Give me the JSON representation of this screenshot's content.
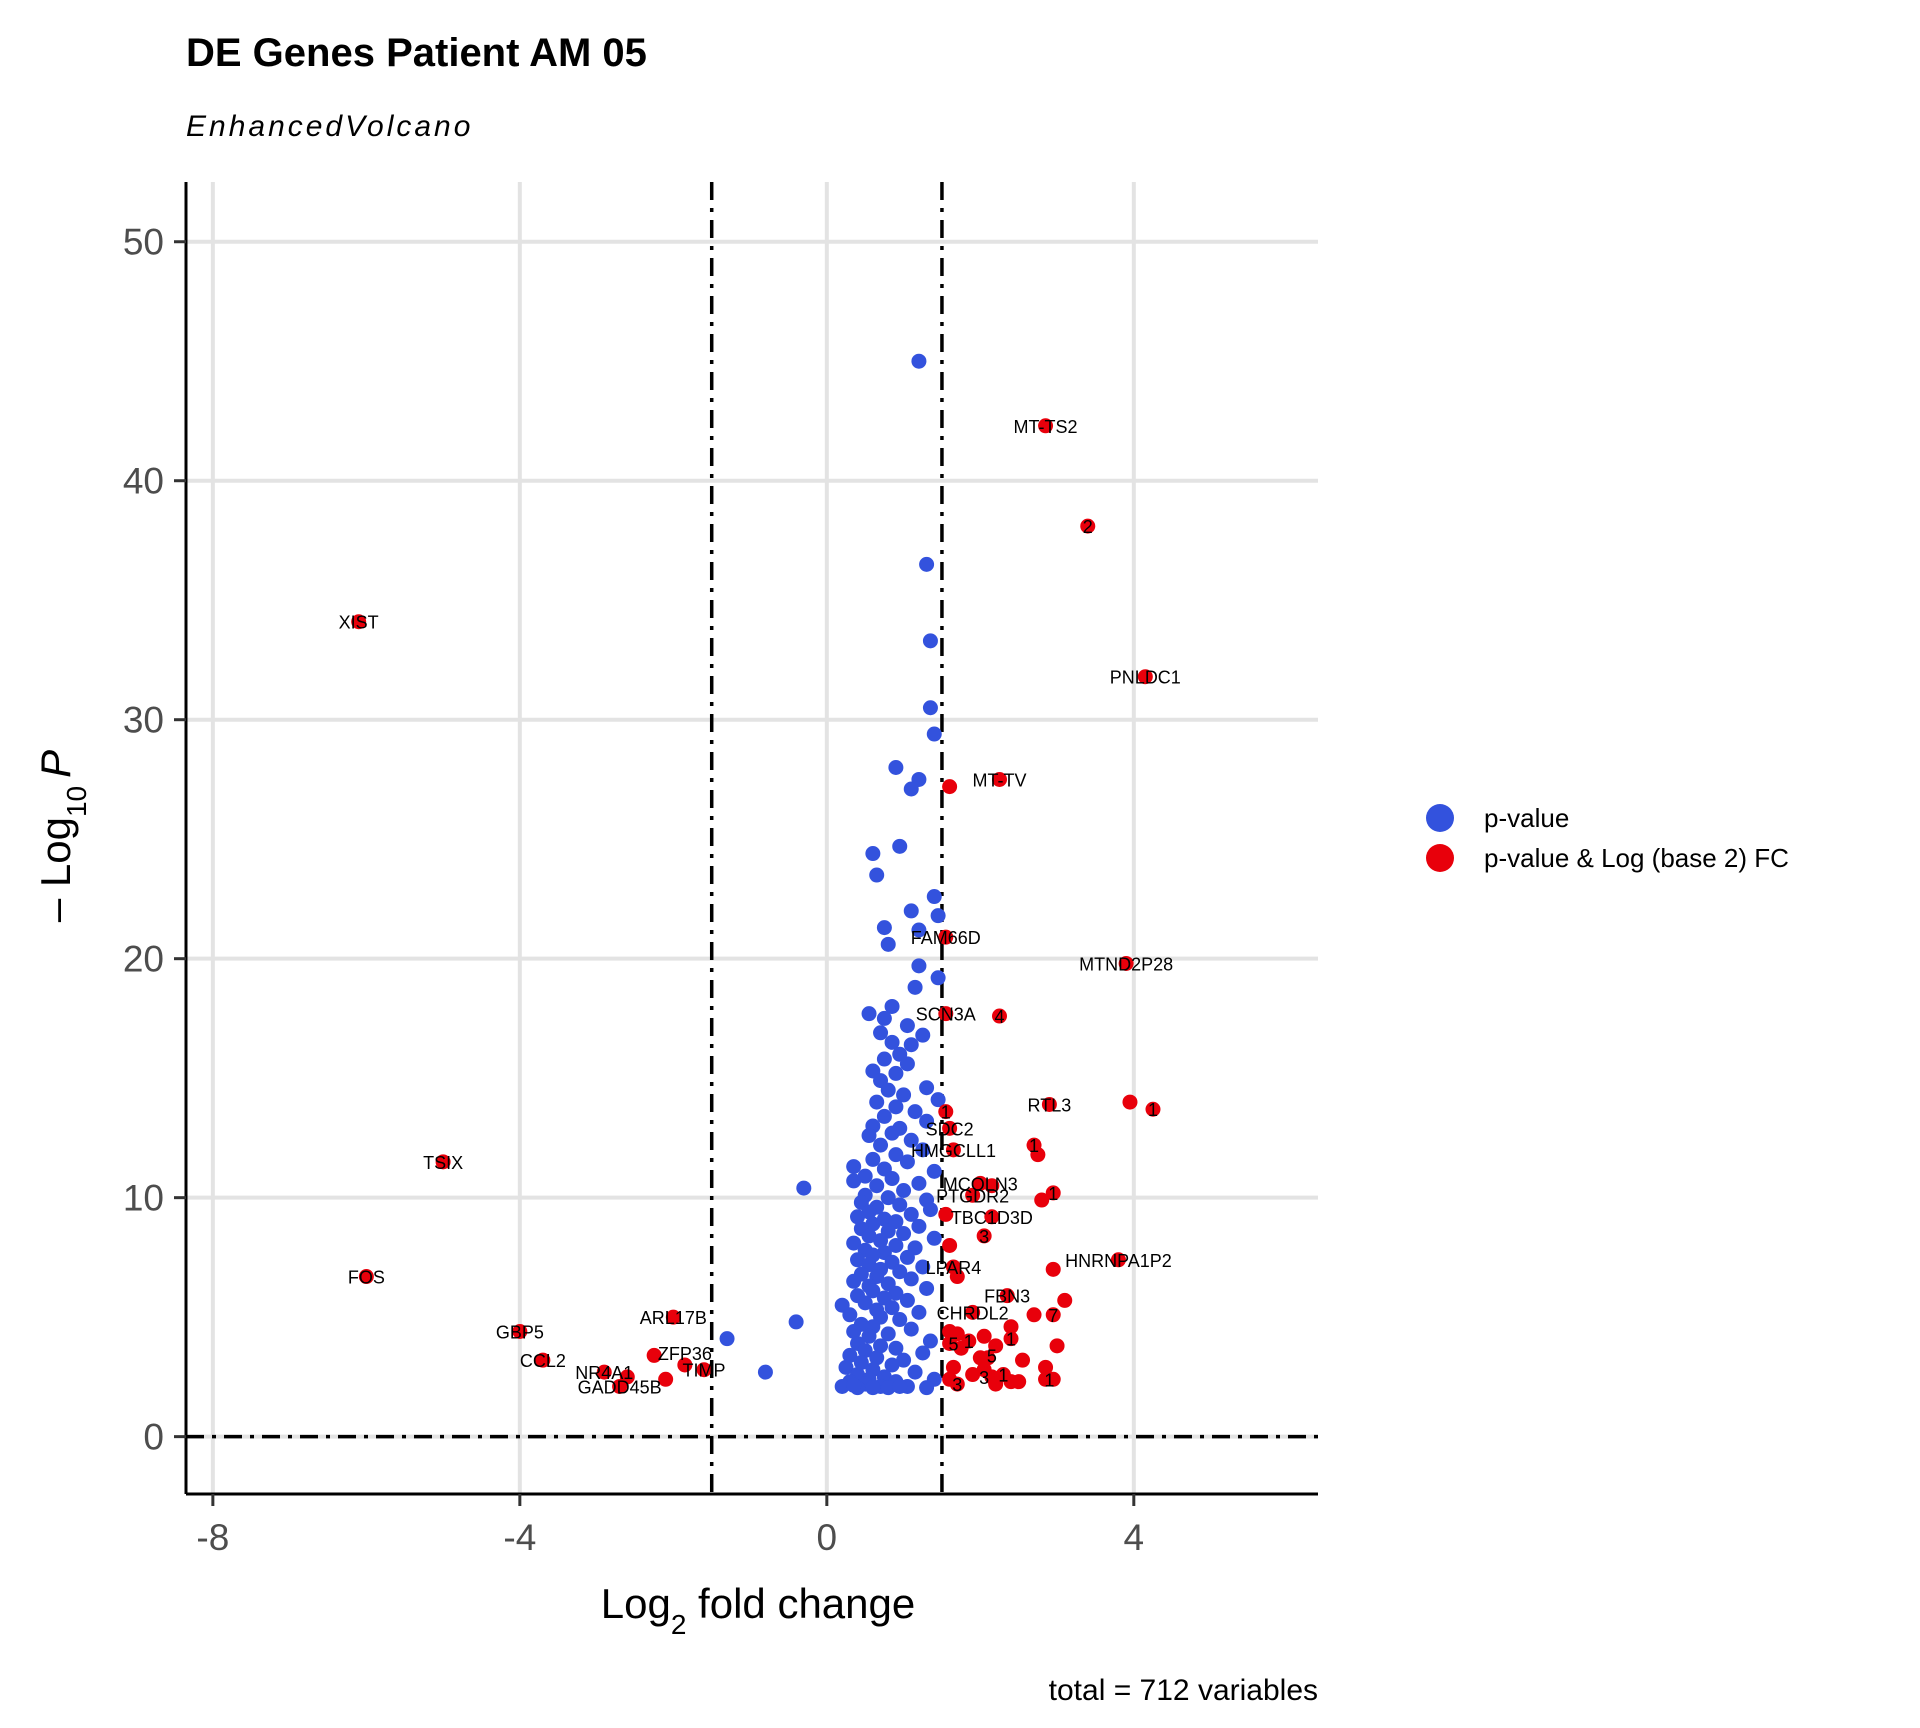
{
  "chart_data": {
    "type": "scatter",
    "title": "DE Genes Patient AM 05",
    "subtitle": "EnhancedVolcano",
    "xlabel_main": "Log",
    "xlabel_sub": "2",
    "xlabel_rest": " fold change",
    "ylabel_pre": "– Log",
    "ylabel_sub": "10",
    "ylabel_italic": "P",
    "caption": "total = 712 variables",
    "xlim": [
      -8.35,
      6.4
    ],
    "ylim": [
      -2.4,
      52.5
    ],
    "xticks": [
      -8,
      -4,
      0,
      4
    ],
    "xtick_labels": [
      "-8",
      "-4",
      "0",
      "4"
    ],
    "yticks": [
      0,
      10,
      20,
      30,
      40,
      50
    ],
    "ytick_labels": [
      "0",
      "10",
      "20",
      "30",
      "40",
      "50"
    ],
    "vlines": [
      -1.5,
      1.5
    ],
    "hline": 0,
    "grid": true,
    "legend_position": "right",
    "legend": [
      {
        "label": "p-value",
        "color": "#3352dd"
      },
      {
        "label": "p-value & Log (base 2) FC",
        "color": "#e8000b"
      }
    ],
    "series_blue": [
      [
        1.2,
        45.0
      ],
      [
        1.3,
        36.5
      ],
      [
        1.35,
        33.3
      ],
      [
        1.35,
        30.5
      ],
      [
        1.4,
        29.4
      ],
      [
        0.9,
        28.0
      ],
      [
        1.2,
        27.5
      ],
      [
        1.1,
        27.1
      ],
      [
        0.6,
        24.4
      ],
      [
        0.95,
        24.7
      ],
      [
        0.65,
        23.5
      ],
      [
        1.4,
        22.6
      ],
      [
        1.1,
        22.0
      ],
      [
        1.45,
        21.8
      ],
      [
        0.75,
        21.3
      ],
      [
        1.2,
        21.2
      ],
      [
        0.8,
        20.6
      ],
      [
        1.2,
        19.7
      ],
      [
        1.45,
        19.2
      ],
      [
        1.15,
        18.8
      ],
      [
        0.85,
        18.0
      ],
      [
        0.55,
        17.7
      ],
      [
        0.75,
        17.5
      ],
      [
        1.05,
        17.2
      ],
      [
        1.25,
        16.8
      ],
      [
        0.7,
        16.9
      ],
      [
        0.85,
        16.5
      ],
      [
        1.1,
        16.4
      ],
      [
        0.95,
        16.0
      ],
      [
        0.75,
        15.8
      ],
      [
        1.05,
        15.6
      ],
      [
        0.6,
        15.3
      ],
      [
        0.9,
        15.2
      ],
      [
        0.7,
        14.9
      ],
      [
        1.3,
        14.6
      ],
      [
        0.8,
        14.5
      ],
      [
        1.0,
        14.3
      ],
      [
        0.65,
        14.0
      ],
      [
        1.45,
        14.1
      ],
      [
        0.9,
        13.8
      ],
      [
        1.15,
        13.6
      ],
      [
        0.75,
        13.4
      ],
      [
        1.3,
        13.2
      ],
      [
        0.6,
        13.0
      ],
      [
        0.95,
        12.9
      ],
      [
        0.85,
        12.7
      ],
      [
        0.55,
        12.6
      ],
      [
        1.1,
        12.4
      ],
      [
        0.7,
        12.2
      ],
      [
        1.25,
        12.0
      ],
      [
        0.9,
        11.8
      ],
      [
        0.6,
        11.6
      ],
      [
        1.05,
        11.5
      ],
      [
        0.35,
        11.3
      ],
      [
        0.75,
        11.2
      ],
      [
        1.4,
        11.1
      ],
      [
        0.5,
        10.9
      ],
      [
        0.85,
        10.8
      ],
      [
        0.35,
        10.7
      ],
      [
        1.2,
        10.6
      ],
      [
        0.65,
        10.5
      ],
      [
        -0.3,
        10.4
      ],
      [
        1.0,
        10.3
      ],
      [
        0.5,
        10.1
      ],
      [
        0.8,
        10.0
      ],
      [
        1.3,
        9.9
      ],
      [
        0.45,
        9.8
      ],
      [
        0.95,
        9.7
      ],
      [
        0.65,
        9.6
      ],
      [
        1.35,
        9.5
      ],
      [
        0.55,
        9.4
      ],
      [
        1.1,
        9.3
      ],
      [
        0.4,
        9.2
      ],
      [
        0.75,
        9.1
      ],
      [
        0.9,
        9.0
      ],
      [
        0.6,
        8.9
      ],
      [
        1.2,
        8.8
      ],
      [
        0.45,
        8.7
      ],
      [
        0.8,
        8.6
      ],
      [
        1.0,
        8.5
      ],
      [
        0.55,
        8.4
      ],
      [
        1.4,
        8.3
      ],
      [
        0.7,
        8.2
      ],
      [
        0.35,
        8.1
      ],
      [
        0.9,
        8.0
      ],
      [
        1.15,
        7.9
      ],
      [
        0.5,
        7.8
      ],
      [
        0.75,
        7.7
      ],
      [
        0.6,
        7.6
      ],
      [
        1.05,
        7.5
      ],
      [
        0.4,
        7.4
      ],
      [
        0.85,
        7.3
      ],
      [
        0.55,
        7.2
      ],
      [
        1.25,
        7.1
      ],
      [
        0.7,
        7.0
      ],
      [
        0.95,
        6.9
      ],
      [
        0.45,
        6.8
      ],
      [
        0.65,
        6.7
      ],
      [
        1.1,
        6.6
      ],
      [
        0.35,
        6.5
      ],
      [
        0.8,
        6.4
      ],
      [
        0.55,
        6.3
      ],
      [
        1.3,
        6.2
      ],
      [
        0.6,
        6.1
      ],
      [
        0.9,
        6.0
      ],
      [
        0.4,
        5.9
      ],
      [
        0.75,
        5.8
      ],
      [
        1.05,
        5.7
      ],
      [
        0.5,
        5.6
      ],
      [
        0.2,
        5.5
      ],
      [
        0.85,
        5.4
      ],
      [
        0.65,
        5.3
      ],
      [
        1.2,
        5.2
      ],
      [
        0.3,
        5.1
      ],
      [
        0.7,
        5.0
      ],
      [
        -0.4,
        4.8
      ],
      [
        0.95,
        4.9
      ],
      [
        0.45,
        4.7
      ],
      [
        0.6,
        4.6
      ],
      [
        1.1,
        4.5
      ],
      [
        0.35,
        4.4
      ],
      [
        0.8,
        4.3
      ],
      [
        0.55,
        4.2
      ],
      [
        -1.3,
        4.1
      ],
      [
        1.35,
        4.0
      ],
      [
        0.4,
        3.9
      ],
      [
        0.7,
        3.8
      ],
      [
        0.9,
        3.7
      ],
      [
        0.5,
        3.6
      ],
      [
        1.25,
        3.5
      ],
      [
        0.3,
        3.4
      ],
      [
        0.65,
        3.3
      ],
      [
        1.0,
        3.2
      ],
      [
        0.45,
        3.1
      ],
      [
        0.85,
        3.0
      ],
      [
        0.25,
        2.9
      ],
      [
        0.6,
        2.8
      ],
      [
        -0.8,
        2.7
      ],
      [
        1.15,
        2.7
      ],
      [
        0.4,
        2.6
      ],
      [
        0.75,
        2.5
      ],
      [
        0.55,
        2.4
      ],
      [
        1.4,
        2.4
      ],
      [
        0.3,
        2.3
      ],
      [
        0.9,
        2.3
      ],
      [
        0.5,
        2.2
      ],
      [
        0.7,
        2.1
      ],
      [
        1.05,
        2.1
      ],
      [
        0.2,
        2.1
      ],
      [
        0.6,
        2.05
      ],
      [
        0.8,
        2.05
      ],
      [
        1.3,
        2.05
      ],
      [
        0.4,
        2.05
      ],
      [
        0.95,
        2.1
      ],
      [
        0.35,
        2.15
      ]
    ],
    "series_red": [
      [
        2.85,
        42.3
      ],
      [
        3.4,
        38.1
      ],
      [
        -6.1,
        34.1
      ],
      [
        4.15,
        31.8
      ],
      [
        2.25,
        27.5
      ],
      [
        1.6,
        27.2
      ],
      [
        1.55,
        20.9
      ],
      [
        3.9,
        19.8
      ],
      [
        1.55,
        17.7
      ],
      [
        2.25,
        17.6
      ],
      [
        3.95,
        14.0
      ],
      [
        2.9,
        13.9
      ],
      [
        4.25,
        13.7
      ],
      [
        1.55,
        13.6
      ],
      [
        1.6,
        12.9
      ],
      [
        2.7,
        12.2
      ],
      [
        1.65,
        12.0
      ],
      [
        2.75,
        11.8
      ],
      [
        -5.0,
        11.5
      ],
      [
        2.0,
        10.6
      ],
      [
        2.15,
        10.5
      ],
      [
        2.95,
        10.2
      ],
      [
        1.9,
        10.1
      ],
      [
        2.8,
        9.9
      ],
      [
        1.55,
        9.3
      ],
      [
        2.15,
        9.2
      ],
      [
        2.05,
        8.4
      ],
      [
        1.6,
        8.0
      ],
      [
        3.8,
        7.4
      ],
      [
        1.65,
        7.1
      ],
      [
        2.95,
        7.0
      ],
      [
        1.7,
        6.7
      ],
      [
        -6.0,
        6.7
      ],
      [
        2.35,
        5.9
      ],
      [
        3.1,
        5.7
      ],
      [
        1.9,
        5.2
      ],
      [
        2.7,
        5.1
      ],
      [
        2.95,
        5.1
      ],
      [
        -2.0,
        5.0
      ],
      [
        2.4,
        4.6
      ],
      [
        1.6,
        4.4
      ],
      [
        1.7,
        4.3
      ],
      [
        -4.0,
        4.4
      ],
      [
        2.05,
        4.2
      ],
      [
        2.4,
        4.1
      ],
      [
        1.85,
        4.0
      ],
      [
        1.6,
        3.9
      ],
      [
        3.0,
        3.8
      ],
      [
        2.2,
        3.8
      ],
      [
        1.75,
        3.7
      ],
      [
        -2.25,
        3.4
      ],
      [
        2.0,
        3.3
      ],
      [
        2.1,
        3.3
      ],
      [
        -3.7,
        3.2
      ],
      [
        2.55,
        3.2
      ],
      [
        -1.85,
        3.0
      ],
      [
        1.65,
        2.9
      ],
      [
        2.85,
        2.9
      ],
      [
        2.05,
        2.8
      ],
      [
        -1.6,
        2.8
      ],
      [
        -2.9,
        2.7
      ],
      [
        1.9,
        2.6
      ],
      [
        2.3,
        2.6
      ],
      [
        -2.6,
        2.5
      ],
      [
        2.15,
        2.5
      ],
      [
        -2.1,
        2.4
      ],
      [
        2.85,
        2.4
      ],
      [
        2.95,
        2.4
      ],
      [
        1.6,
        2.4
      ],
      [
        2.5,
        2.3
      ],
      [
        1.7,
        2.2
      ],
      [
        2.2,
        2.2
      ],
      [
        -2.7,
        2.1
      ],
      [
        2.4,
        2.3
      ]
    ],
    "labels": [
      {
        "text": "MT-TS2",
        "x": 2.85,
        "y": 42.3
      },
      {
        "text": "2",
        "x": 3.4,
        "y": 38.1
      },
      {
        "text": "XIST",
        "x": -6.1,
        "y": 34.1
      },
      {
        "text": "PNLDC1",
        "x": 4.15,
        "y": 31.8
      },
      {
        "text": "MT-TV",
        "x": 2.25,
        "y": 27.5
      },
      {
        "text": "FAM66D",
        "x": 1.55,
        "y": 20.9
      },
      {
        "text": "MTND2P28",
        "x": 3.9,
        "y": 19.8
      },
      {
        "text": "SCN3A",
        "x": 1.55,
        "y": 17.7
      },
      {
        "text": "4",
        "x": 2.25,
        "y": 17.6
      },
      {
        "text": "RTL3",
        "x": 2.9,
        "y": 13.9
      },
      {
        "text": "SDC2",
        "x": 1.6,
        "y": 12.9
      },
      {
        "text": "HMGCLL1",
        "x": 1.65,
        "y": 12.0
      },
      {
        "text": "TSIX",
        "x": -5.0,
        "y": 11.5
      },
      {
        "text": "MCOLN3",
        "x": 2.0,
        "y": 10.6
      },
      {
        "text": "PTGDR2",
        "x": 1.9,
        "y": 10.1
      },
      {
        "text": "TBC1D3D",
        "x": 2.15,
        "y": 9.2
      },
      {
        "text": "HNRNPA1P2",
        "x": 3.8,
        "y": 7.4
      },
      {
        "text": "LPAR4",
        "x": 1.65,
        "y": 7.1
      },
      {
        "text": "FOS",
        "x": -6.0,
        "y": 6.7
      },
      {
        "text": "FBN3",
        "x": 2.35,
        "y": 5.9
      },
      {
        "text": "ARL17B",
        "x": -2.0,
        "y": 5.0
      },
      {
        "text": "CHRDL2",
        "x": 1.9,
        "y": 5.2
      },
      {
        "text": "GBP5",
        "x": -4.0,
        "y": 4.4
      },
      {
        "text": "ZFP36",
        "x": -1.85,
        "y": 3.5
      },
      {
        "text": "CCL2",
        "x": -3.7,
        "y": 3.2
      },
      {
        "text": "TIMP",
        "x": -1.6,
        "y": 2.8
      },
      {
        "text": "NR4A1",
        "x": -2.9,
        "y": 2.7
      },
      {
        "text": "GADD45B",
        "x": -2.7,
        "y": 2.1
      },
      {
        "text": "1",
        "x": 1.55,
        "y": 13.6
      },
      {
        "text": "1",
        "x": 2.7,
        "y": 12.2
      },
      {
        "text": "1",
        "x": 2.95,
        "y": 10.2
      },
      {
        "text": "1",
        "x": 4.25,
        "y": 13.7
      },
      {
        "text": "3",
        "x": 2.05,
        "y": 8.4
      },
      {
        "text": "7",
        "x": 2.95,
        "y": 5.1
      },
      {
        "text": "1",
        "x": 2.4,
        "y": 4.1
      },
      {
        "text": "5",
        "x": 1.65,
        "y": 3.9
      },
      {
        "text": "1",
        "x": 1.85,
        "y": 4.0
      },
      {
        "text": "5",
        "x": 2.15,
        "y": 3.4
      },
      {
        "text": "1",
        "x": 2.9,
        "y": 2.4
      },
      {
        "text": "3",
        "x": 1.7,
        "y": 2.2
      },
      {
        "text": "3",
        "x": 2.05,
        "y": 2.5
      },
      {
        "text": "1",
        "x": 2.3,
        "y": 2.6
      }
    ]
  }
}
